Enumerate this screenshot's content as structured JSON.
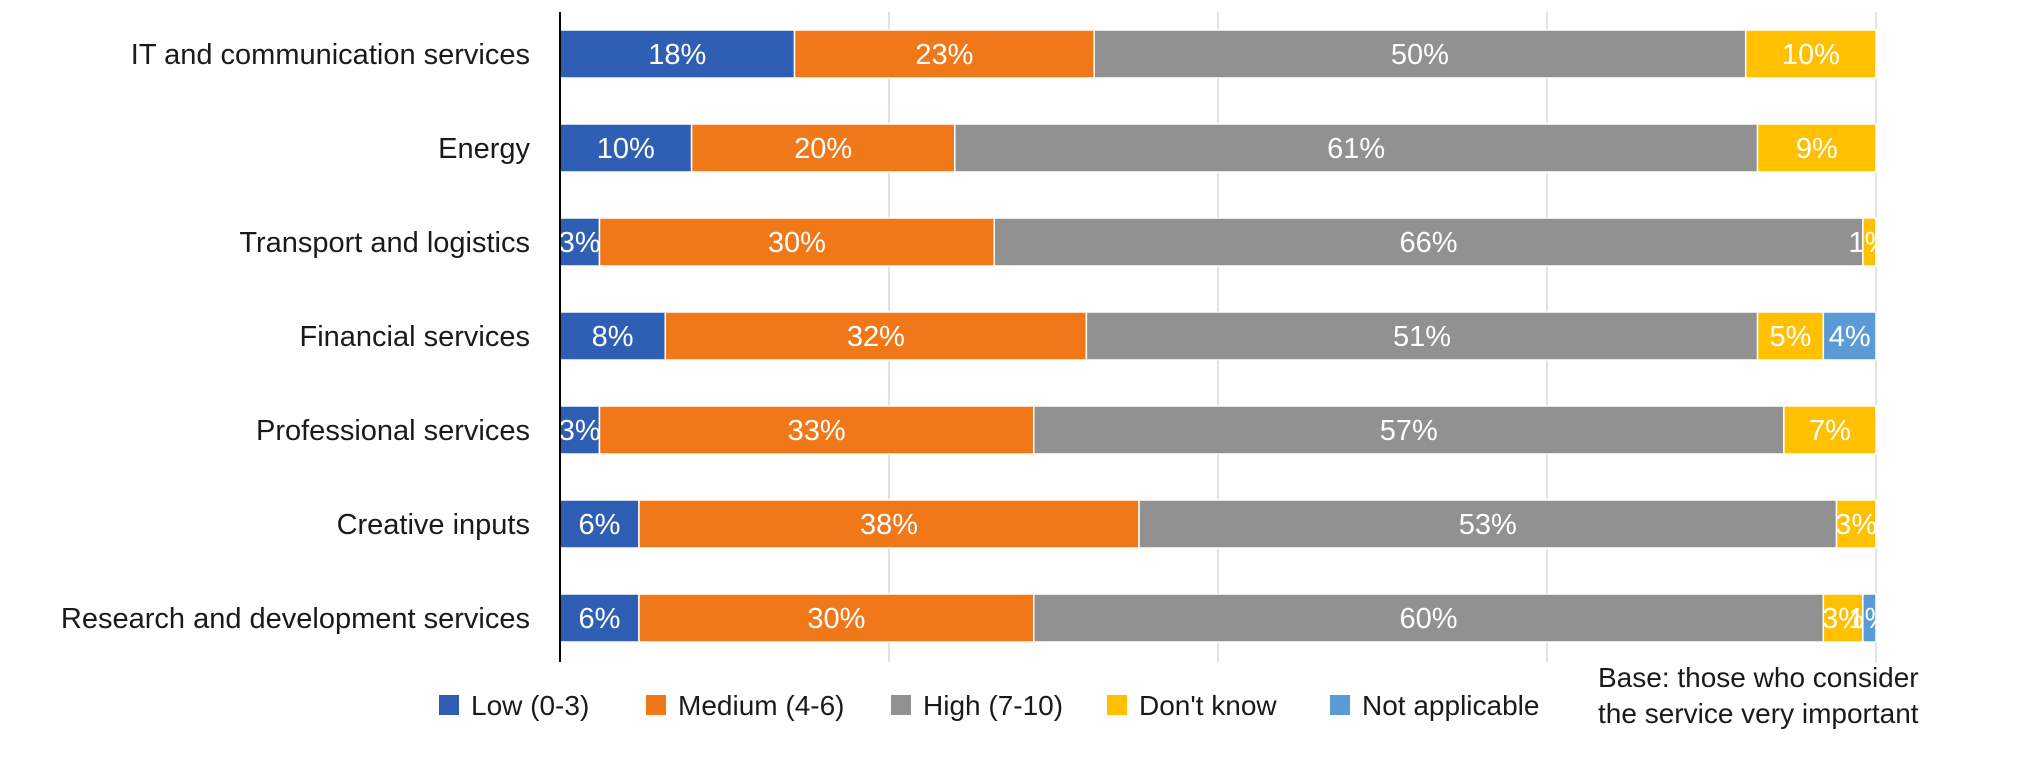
{
  "note": "Base: those who consider the service very important",
  "chart_data": {
    "type": "bar",
    "orientation": "horizontal",
    "stacked": true,
    "categories": [
      "IT and communication services",
      "Energy",
      "Transport and logistics",
      "Financial services",
      "Professional services",
      "Creative inputs",
      "Research and development services"
    ],
    "series": [
      {
        "name": "Low (0-3)",
        "color": "#2f5fb5",
        "values": [
          18,
          10,
          3,
          8,
          3,
          6,
          6
        ]
      },
      {
        "name": "Medium (4-6)",
        "color": "#f07818",
        "values": [
          23,
          20,
          30,
          32,
          33,
          38,
          30
        ]
      },
      {
        "name": "High (7-10)",
        "color": "#919191",
        "values": [
          50,
          61,
          66,
          51,
          57,
          53,
          60
        ]
      },
      {
        "name": "Don't know",
        "color": "#ffc000",
        "values": [
          10,
          9,
          1,
          5,
          7,
          3,
          3
        ]
      },
      {
        "name": "Not applicable",
        "color": "#5b9bd5",
        "values": [
          null,
          null,
          null,
          4,
          null,
          null,
          1
        ]
      }
    ],
    "value_suffix": "%",
    "grid": true,
    "legend_position": "bottom"
  }
}
